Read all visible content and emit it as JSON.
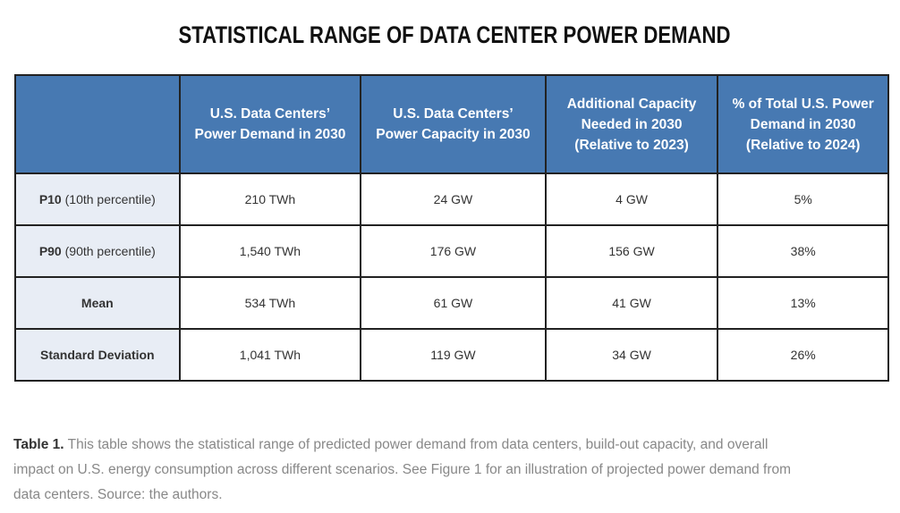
{
  "title": "STATISTICAL RANGE OF DATA CENTER POWER DEMAND",
  "table": {
    "headers": [
      "",
      "U.S. Data Centers’ Power Demand in 2030",
      "U.S. Data Centers’ Power Capacity in 2030",
      "Additional Capacity Needed in 2030 (Relative to 2023)",
      "% of Total U.S. Power Demand in 2030 (Relative to 2024)"
    ],
    "header_lines": [
      [],
      [
        "U.S. Data Centers’",
        "Power Demand in 2030"
      ],
      [
        "U.S. Data Centers’",
        "Power Capacity in 2030"
      ],
      [
        "Additional Capacity",
        "Needed in 2030",
        "(Relative to 2023)"
      ],
      [
        "% of Total U.S. Power",
        "Demand in 2030",
        "(Relative to 2024)"
      ]
    ],
    "rows": [
      {
        "label_bold": "P10",
        "label_rest": " (10th percentile)",
        "values": [
          "210 TWh",
          "24 GW",
          "4 GW",
          "5%"
        ]
      },
      {
        "label_bold": "P90",
        "label_rest": " (90th percentile)",
        "values": [
          "1,540 TWh",
          "176 GW",
          "156 GW",
          "38%"
        ]
      },
      {
        "label_bold": "Mean",
        "label_rest": "",
        "values": [
          "534 TWh",
          "61 GW",
          "41 GW",
          "13%"
        ]
      },
      {
        "label_bold": "Standard Deviation",
        "label_rest": "",
        "values": [
          "1,041 TWh",
          "119 GW",
          "34 GW",
          "26%"
        ]
      }
    ]
  },
  "caption": {
    "lead": "Table 1.",
    "lines": [
      " This table shows the statistical range of predicted power demand from data centers, build-out capacity, and overall",
      "impact on U.S. energy consumption across different scenarios. See Figure 1 for an illustration of projected power demand from",
      "data centers. Source: the authors."
    ]
  },
  "colors": {
    "header_bg": "#4779b2",
    "row_label_bg": "#e8edf5",
    "border": "#222222",
    "caption_text": "#888888"
  }
}
